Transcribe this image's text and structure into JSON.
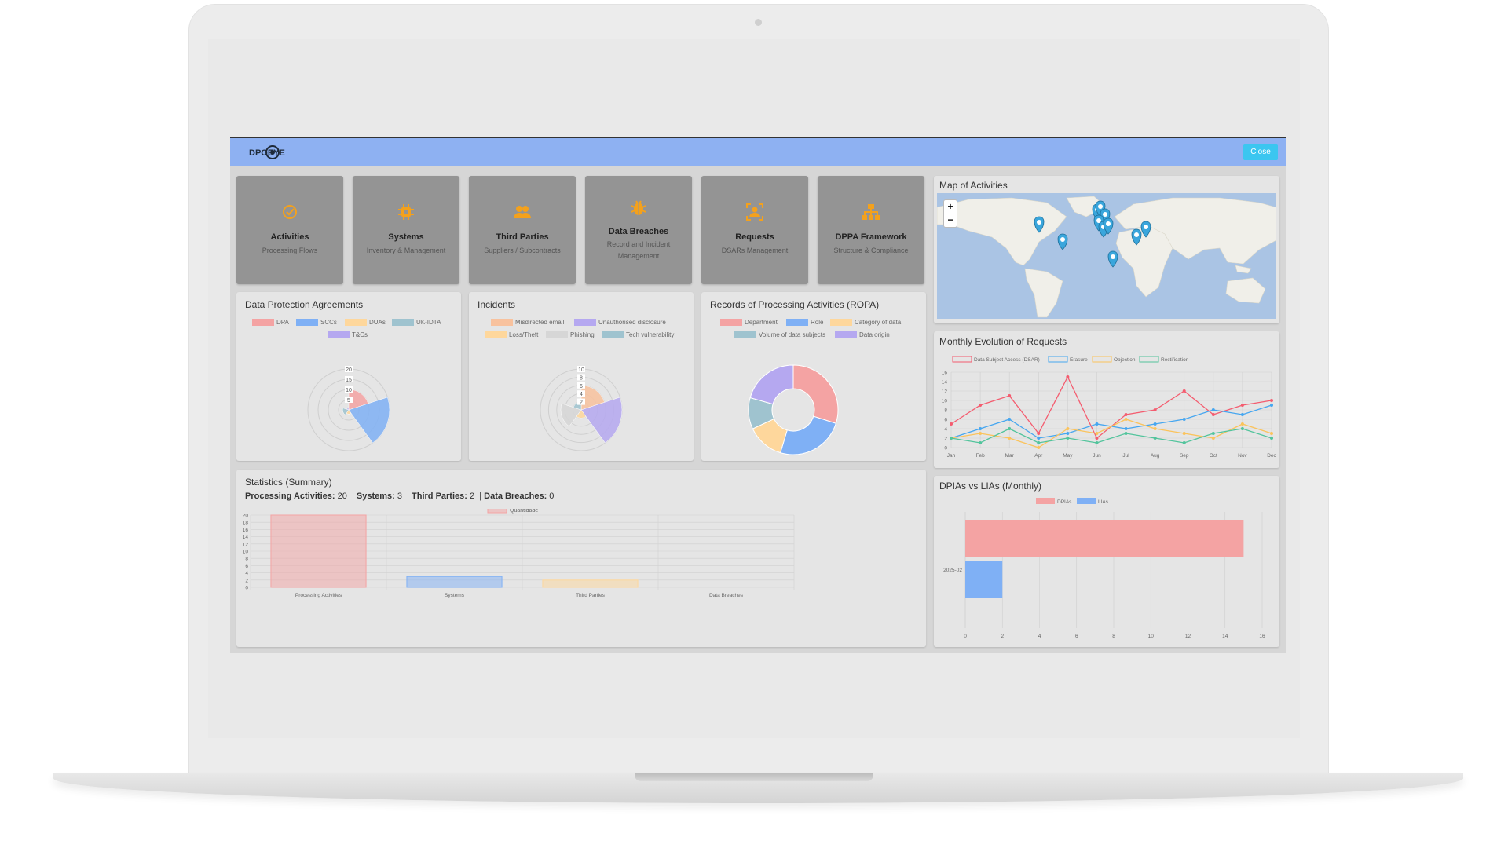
{
  "app": {
    "close_label": "Close",
    "logo_text": "DPOEYE"
  },
  "tiles": [
    {
      "title": "Activities",
      "subtitle": "Processing Flows",
      "icon": "check-circle-icon"
    },
    {
      "title": "Systems",
      "subtitle": "Inventory & Management",
      "icon": "gear-chip-icon"
    },
    {
      "title": "Third Parties",
      "subtitle": "Suppliers / Subcontracts",
      "icon": "users-icon"
    },
    {
      "title": "Data Breaches",
      "subtitle": "Record and Incident Management",
      "icon": "bug-icon"
    },
    {
      "title": "Requests",
      "subtitle": "DSARs Management",
      "icon": "user-focus-icon"
    },
    {
      "title": "DPPA Framework",
      "subtitle": "Structure & Compliance",
      "icon": "hierarchy-icon"
    }
  ],
  "agreements": {
    "title": "Data Protection Agreements",
    "legend": [
      {
        "label": "DPA",
        "color": "#f4a3a3"
      },
      {
        "label": "SCCs",
        "color": "#7fb0f5"
      },
      {
        "label": "DUAs",
        "color": "#fed79c"
      },
      {
        "label": "UK-IDTA",
        "color": "#9fc3cf"
      },
      {
        "label": "T&Cs",
        "color": "#b5a8f0"
      }
    ]
  },
  "incidents": {
    "title": "Incidents",
    "legend": [
      {
        "label": "Misdirected email",
        "color": "#f8c29e"
      },
      {
        "label": "Unauthorised disclosure",
        "color": "#b5a8f0"
      },
      {
        "label": "Loss/Theft",
        "color": "#fed79c"
      },
      {
        "label": "Phishing",
        "color": "#d6d6d6"
      },
      {
        "label": "Tech vulnerability",
        "color": "#9fc3cf"
      }
    ]
  },
  "ropa": {
    "title": "Records of Processing Activities (ROPA)",
    "legend": [
      {
        "label": "Department",
        "color": "#f4a3a3"
      },
      {
        "label": "Role",
        "color": "#7fb0f5"
      },
      {
        "label": "Category of data",
        "color": "#fed79c"
      },
      {
        "label": "Volume of data subjects",
        "color": "#9fc3cf"
      },
      {
        "label": "Data origin",
        "color": "#b5a8f0"
      }
    ]
  },
  "map": {
    "title": "Map of Activities",
    "zoom_in": "+",
    "zoom_out": "−"
  },
  "stats": {
    "title": "Statistics (Summary)",
    "summary": [
      {
        "label": "Processing Activities:",
        "value": "20"
      },
      {
        "label": "Systems:",
        "value": "3"
      },
      {
        "label": "Third Parties:",
        "value": "2"
      },
      {
        "label": "Data Breaches:",
        "value": "0"
      }
    ]
  },
  "requests_title": "Monthly Evolution of Requests",
  "dpia_title": "DPIAs vs LIAs (Monthly)",
  "chart_data": [
    {
      "type": "pie",
      "id": "agreements",
      "categories": [
        "DPA",
        "SCCs",
        "DUAs",
        "UK-IDTA",
        "T&Cs"
      ],
      "values": [
        10,
        20,
        2,
        3,
        1
      ],
      "rlim": [
        0,
        20
      ],
      "ticks": [
        5,
        10,
        15,
        20
      ],
      "colors": [
        "#f4a3a3",
        "#7fb0f5",
        "#fed79c",
        "#9fc3cf",
        "#b5a8f0"
      ]
    },
    {
      "type": "pie",
      "id": "incidents",
      "categories": [
        "Misdirected email",
        "Unauthorised disclosure",
        "Loss/Theft",
        "Phishing",
        "Tech vulnerability"
      ],
      "values": [
        6,
        10,
        2,
        5,
        2
      ],
      "rlim": [
        0,
        10
      ],
      "ticks": [
        2,
        4,
        6,
        8,
        10
      ],
      "colors": [
        "#f8c29e",
        "#b5a8f0",
        "#fed79c",
        "#d6d6d6",
        "#9fc3cf"
      ]
    },
    {
      "type": "pie",
      "id": "ropa",
      "categories": [
        "Department",
        "Role",
        "Category of data",
        "Volume of data subjects",
        "Data origin"
      ],
      "values": [
        29,
        24,
        13,
        11,
        20
      ],
      "colors": [
        "#f4a3a3",
        "#7fb0f5",
        "#fed79c",
        "#9fc3cf",
        "#b5a8f0"
      ]
    },
    {
      "type": "bar",
      "id": "stats",
      "categories": [
        "Processing Activities",
        "Systems",
        "Third Parties",
        "Data Breaches"
      ],
      "series": [
        {
          "name": "Quantidade",
          "values": [
            20,
            3,
            2,
            0
          ]
        }
      ],
      "ylim": [
        0,
        20
      ],
      "yticks": [
        0,
        2,
        4,
        6,
        8,
        10,
        12,
        14,
        16,
        18,
        20
      ],
      "colors": [
        "#f4a3a3",
        "#7fb0f5",
        "#fed79c",
        "#9fc3cf"
      ]
    },
    {
      "type": "line",
      "id": "requests",
      "categories": [
        "Jan",
        "Feb",
        "Mar",
        "Apr",
        "May",
        "Jun",
        "Jul",
        "Aug",
        "Sep",
        "Oct",
        "Nov",
        "Dec"
      ],
      "ylim": [
        0,
        16
      ],
      "yticks": [
        0,
        2,
        4,
        6,
        8,
        10,
        12,
        14,
        16
      ],
      "series": [
        {
          "name": "Data Subject Access (DSAR)",
          "color": "#f45c6f",
          "values": [
            5,
            9,
            11,
            3,
            15,
            2,
            7,
            8,
            12,
            7,
            9,
            10
          ]
        },
        {
          "name": "Erasure",
          "color": "#45a6f0",
          "values": [
            2,
            4,
            6,
            2,
            3,
            5,
            4,
            5,
            6,
            8,
            7,
            9
          ]
        },
        {
          "name": "Objection",
          "color": "#fbc35b",
          "values": [
            2,
            3,
            2,
            0,
            4,
            3,
            6,
            4,
            3,
            2,
            5,
            3
          ]
        },
        {
          "name": "Rectification",
          "color": "#52c49c",
          "values": [
            2,
            1,
            4,
            1,
            2,
            1,
            3,
            2,
            1,
            3,
            4,
            2
          ]
        }
      ]
    },
    {
      "type": "bar",
      "id": "dpia",
      "orientation": "horizontal",
      "categories": [
        "2025-02"
      ],
      "xlim": [
        0,
        16
      ],
      "xticks": [
        0,
        2,
        4,
        6,
        8,
        10,
        12,
        14,
        16
      ],
      "series": [
        {
          "name": "DPIAs",
          "color": "#f4a3a3",
          "values": [
            15
          ]
        },
        {
          "name": "LIAs",
          "color": "#7fb0f5",
          "values": [
            2
          ]
        }
      ]
    }
  ]
}
